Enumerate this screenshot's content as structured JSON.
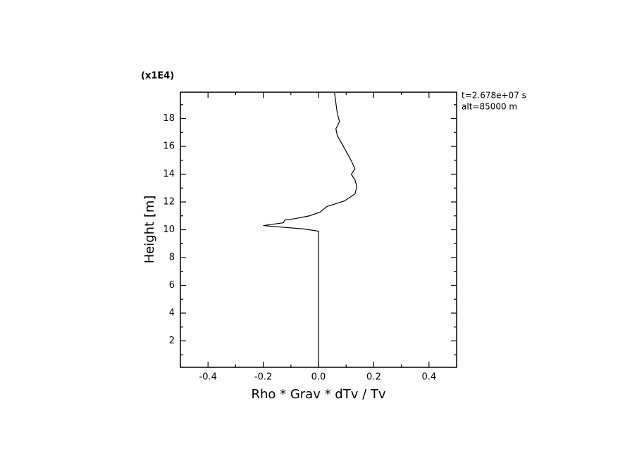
{
  "chart_data": {
    "type": "line",
    "x_label": "Rho * Grav * dTv / Tv",
    "y_label": "Height [m]",
    "y_multiplier": "(x1E4)",
    "annotations": [
      "t=2.678e+07 s",
      "alt=85000 m"
    ],
    "x": [
      0.0,
      0.0,
      -0.05,
      -0.2,
      -0.127,
      -0.122,
      -0.084,
      -0.033,
      0.005,
      0.03,
      0.094,
      0.132,
      0.139,
      0.132,
      0.119,
      0.132,
      0.119,
      0.094,
      0.068,
      0.063,
      0.076,
      0.068,
      0.058
    ],
    "series": [
      {
        "color": "#000000",
        "values": [
          0.1,
          9.9,
          10.05,
          10.3,
          10.5,
          10.7,
          10.8,
          11.0,
          11.26,
          11.67,
          12.07,
          12.58,
          13.08,
          13.59,
          13.99,
          14.39,
          14.95,
          15.86,
          16.77,
          17.27,
          17.78,
          18.38,
          19.85
        ]
      }
    ],
    "xlim": [
      -0.5,
      0.5
    ],
    "ylim": [
      0.1,
      19.9
    ],
    "xticks": [
      -0.4,
      -0.2,
      {
        "value": 0,
        "label": "0.0"
      },
      0.2,
      0.4
    ],
    "yticks": [
      2,
      4,
      6,
      8,
      10,
      12,
      14,
      16,
      18
    ],
    "xminorticks": [
      -0.5,
      -0.3,
      -0.1,
      0.1,
      0.3,
      0.5
    ],
    "yminorticks": [
      1,
      3,
      5,
      7,
      9,
      11,
      13,
      15,
      17,
      19
    ]
  }
}
